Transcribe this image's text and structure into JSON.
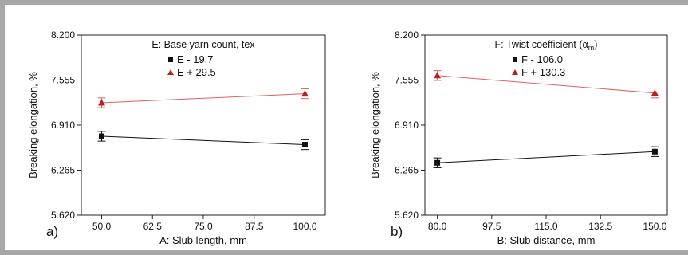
{
  "chart_data": [
    {
      "type": "line",
      "panel_label": "a)",
      "title": "E: Base yarn count, tex",
      "xlabel": "A: Slub length, mm",
      "ylabel": "Breaking elongation, %",
      "xlim": [
        45.0,
        105.0
      ],
      "ylim": [
        5.62,
        8.2
      ],
      "x_ticks": [
        "50.0",
        "62.5",
        "75.0",
        "87.5",
        "100.0"
      ],
      "x_tick_values": [
        50,
        62.5,
        75,
        87.5,
        100
      ],
      "y_ticks": [
        "8.200",
        "7.555",
        "6.910",
        "6.265",
        "5.620"
      ],
      "y_tick_values": [
        8.2,
        7.555,
        6.91,
        6.265,
        5.62
      ],
      "legend_position": "top-center",
      "series": [
        {
          "name": "E - 19.7",
          "marker": "square",
          "line_color": "#111111",
          "marker_color": "#111111",
          "x": [
            50.0,
            100.0
          ],
          "y": [
            6.75,
            6.63
          ],
          "err": [
            0.07,
            0.07
          ]
        },
        {
          "name": "E + 29.5",
          "marker": "triangle",
          "line_color": "#e06060",
          "marker_color": "#b22222",
          "x": [
            50.0,
            100.0
          ],
          "y": [
            7.23,
            7.36
          ],
          "err": [
            0.07,
            0.07
          ]
        }
      ]
    },
    {
      "type": "line",
      "panel_label": "b)",
      "title": "F: Twist coefficient (α",
      "title_sub": "m",
      "title_end": ")",
      "xlabel": "B: Slub distance, mm",
      "ylabel": "Breaking elongation, %",
      "xlim": [
        76.0,
        154.0
      ],
      "ylim": [
        5.62,
        8.2
      ],
      "x_ticks": [
        "80.0",
        "97.5",
        "115.0",
        "132.5",
        "150.0"
      ],
      "x_tick_values": [
        80,
        97.5,
        115,
        132.5,
        150
      ],
      "y_ticks": [
        "8.200",
        "7.555",
        "6.910",
        "6.265",
        "5.620"
      ],
      "y_tick_values": [
        8.2,
        7.555,
        6.91,
        6.265,
        5.62
      ],
      "legend_position": "top-center",
      "series": [
        {
          "name": "F - 106.0",
          "marker": "square",
          "line_color": "#111111",
          "marker_color": "#111111",
          "x": [
            80.0,
            150.0
          ],
          "y": [
            6.37,
            6.53
          ],
          "err": [
            0.07,
            0.07
          ]
        },
        {
          "name": "F + 130.3",
          "marker": "triangle",
          "line_color": "#e06060",
          "marker_color": "#b22222",
          "x": [
            80.0,
            150.0
          ],
          "y": [
            7.62,
            7.37
          ],
          "err": [
            0.07,
            0.07
          ]
        }
      ]
    }
  ]
}
